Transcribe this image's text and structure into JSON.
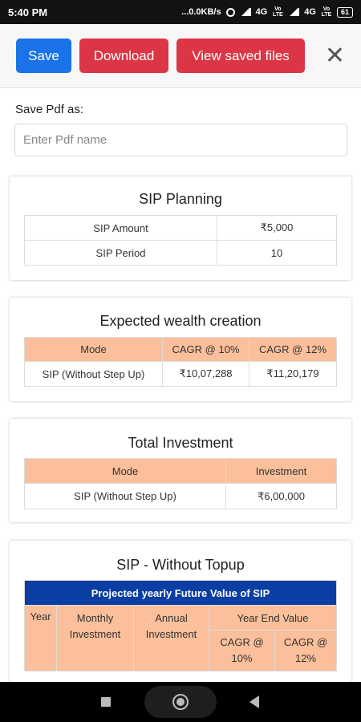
{
  "status": {
    "time": "5:40 PM",
    "speed": "...0.0KB/s",
    "network1": "4G",
    "network2": "4G",
    "volte": "Vo LTE",
    "battery": "61"
  },
  "toolbar": {
    "save_label": "Save",
    "download_label": "Download",
    "view_saved_label": "View saved files",
    "close_symbol": "✕"
  },
  "save_pdf": {
    "label": "Save Pdf as:",
    "placeholder": "Enter Pdf name",
    "value": ""
  },
  "sip_planning": {
    "title": "SIP Planning",
    "rows": [
      {
        "label": "SIP Amount",
        "value": "₹5,000"
      },
      {
        "label": "SIP Period",
        "value": "10"
      }
    ]
  },
  "wealth": {
    "title": "Expected wealth creation",
    "headers": [
      "Mode",
      "CAGR @ 10%",
      "CAGR @ 12%"
    ],
    "row": [
      "SIP (Without Step Up)",
      "₹10,07,288",
      "₹11,20,179"
    ]
  },
  "investment": {
    "title": "Total Investment",
    "headers": [
      "Mode",
      "Investment"
    ],
    "row": [
      "SIP (Without Step Up)",
      "₹6,00,000"
    ]
  },
  "without_topup": {
    "title": "SIP - Without Topup",
    "banner": "Projected yearly Future Value of SIP",
    "headers": {
      "year": "Year",
      "monthly": "Monthly Investment",
      "annual": "Annual Investment",
      "year_end": "Year End Value",
      "cagr10": "CAGR @ 10%",
      "cagr12": "CAGR @ 12%"
    }
  },
  "colors": {
    "save": "#1a73e8",
    "danger": "#dc3545",
    "table_header": "#fbbf9b",
    "banner": "#0b3ea3"
  }
}
